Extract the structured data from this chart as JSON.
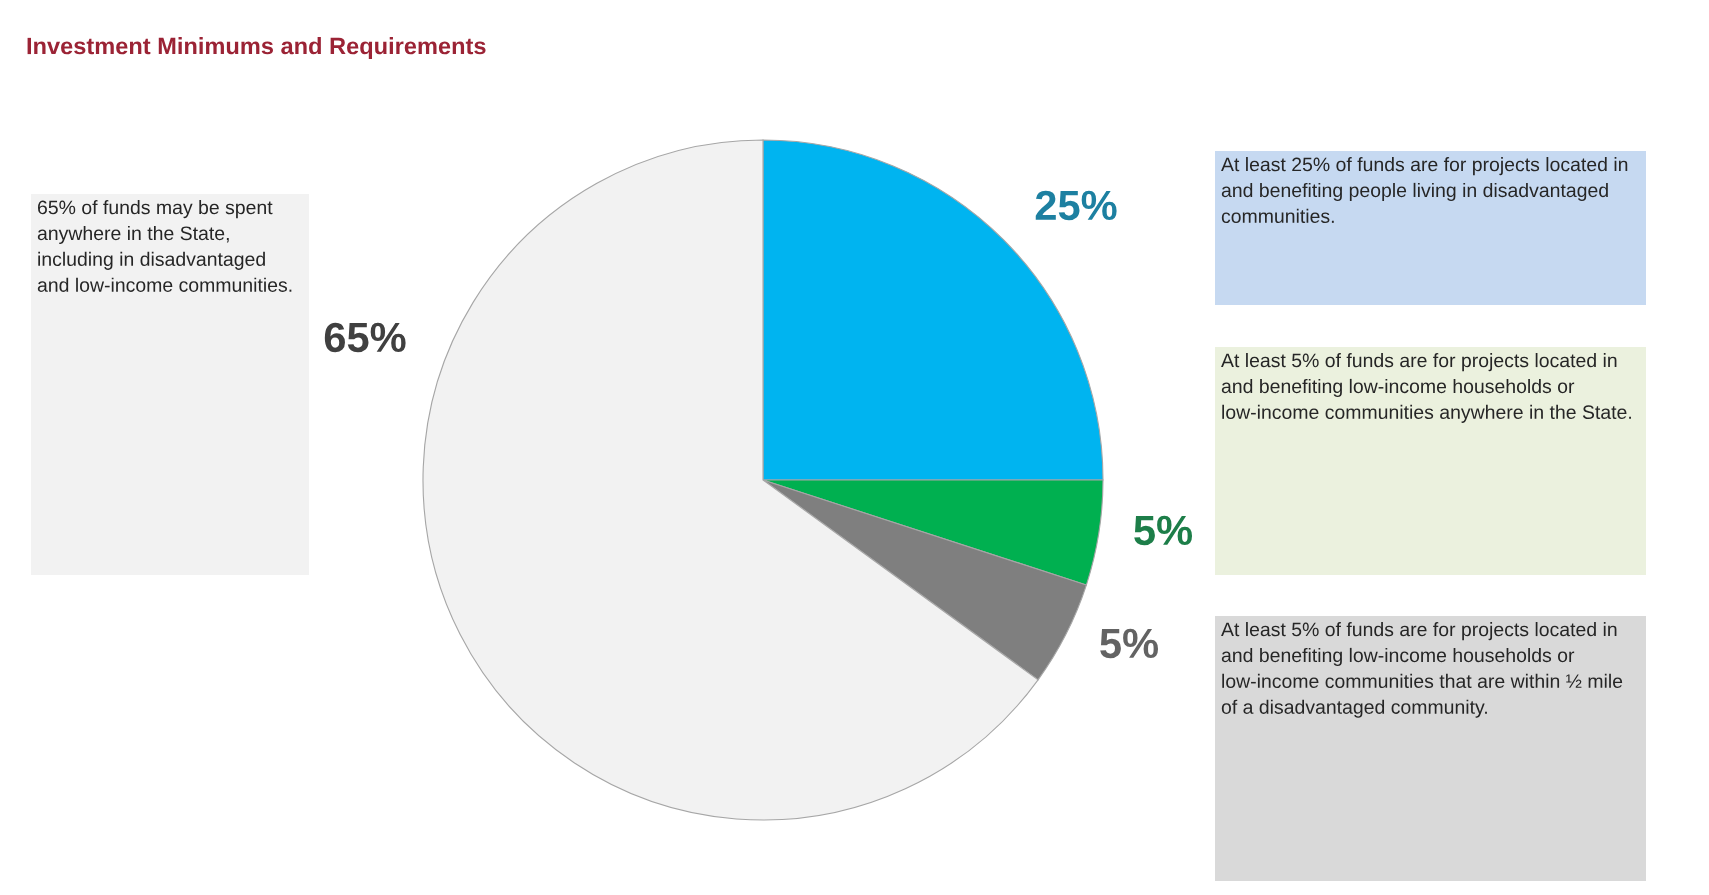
{
  "chart_data": {
    "type": "pie",
    "title": "Investment Minimums and Requirements",
    "categories": [
      null,
      null,
      null,
      null
    ],
    "values": [
      25,
      5,
      5,
      65
    ],
    "colors": [
      "#00b4f0",
      "#00b050",
      "#7f7f7f",
      "#f2f2f2"
    ],
    "value_labels": [
      "25%",
      "5%",
      "5%",
      "65%"
    ],
    "annotations": [
      "At least 25% of funds are for projects located in and benefiting people living in disadvantaged communities.",
      "At least 5% of funds are for projects located in and benefiting low-income households or low-income communities anywhere in the State.",
      "At least 5% of funds are for projects located in and benefiting low-income households or low-income communities that are within ½ mile of a disadvantaged community.",
      "65% of funds may be spent anywhere in the State, including in disadvantaged and low-income communities."
    ]
  }
}
